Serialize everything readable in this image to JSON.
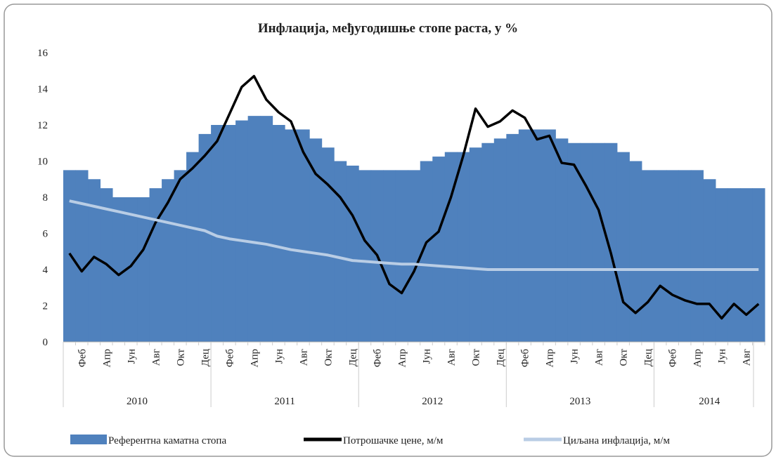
{
  "chart_data": {
    "type": "bar-line",
    "title": "Инфлација, међугодишње стопе раста, у %",
    "categories": [
      null,
      "Феб",
      null,
      "Апр",
      null,
      "Јун",
      null,
      "Авг",
      null,
      "Окт",
      null,
      "Дец",
      null,
      "Феб",
      null,
      "Апр",
      null,
      "Јун",
      null,
      "Авг",
      null,
      "Окт",
      null,
      "Дец",
      null,
      "Феб",
      null,
      "Апр",
      null,
      "Јун",
      null,
      "Авг",
      null,
      "Окт",
      null,
      "Дец",
      null,
      "Феб",
      null,
      "Апр",
      null,
      "Јун",
      null,
      "Авг",
      null,
      "Окт",
      null,
      "Дец",
      null,
      "Феб",
      null,
      "Апр",
      null,
      "Јун",
      null,
      "Авг",
      null
    ],
    "years": [
      "2010",
      null,
      null,
      null,
      null,
      null,
      null,
      null,
      null,
      null,
      null,
      null,
      "2011",
      null,
      null,
      null,
      null,
      null,
      null,
      null,
      null,
      null,
      null,
      null,
      "2012",
      null,
      null,
      null,
      null,
      null,
      null,
      null,
      null,
      null,
      null,
      null,
      "2013",
      null,
      null,
      null,
      null,
      null,
      null,
      null,
      null,
      null,
      null,
      null,
      "2014",
      null,
      null,
      null,
      null,
      null,
      null,
      null,
      null
    ],
    "ylim": [
      0,
      16
    ],
    "yticks": [
      0,
      2,
      4,
      6,
      8,
      10,
      12,
      14,
      16
    ],
    "series": [
      {
        "name": "Референтна каматна стопа",
        "kind": "bar",
        "color": "#4f81bd",
        "values": [
          9.5,
          9.5,
          9.0,
          8.5,
          8.0,
          8.0,
          8.0,
          8.5,
          9.0,
          9.5,
          10.5,
          11.5,
          12.0,
          12.0,
          12.25,
          12.5,
          12.5,
          12.0,
          11.75,
          11.75,
          11.25,
          10.75,
          10.0,
          9.75,
          9.5,
          9.5,
          9.5,
          9.5,
          9.5,
          10.0,
          10.25,
          10.5,
          10.5,
          10.75,
          11.0,
          11.25,
          11.5,
          11.75,
          11.75,
          11.75,
          11.25,
          11.0,
          11.0,
          11.0,
          11.0,
          10.5,
          10.0,
          9.5,
          9.5,
          9.5,
          9.5,
          9.5,
          9.0,
          8.5,
          8.5,
          8.5,
          8.5
        ]
      },
      {
        "name": "Потрошачке цене, м/м",
        "kind": "line",
        "color": "#000000",
        "values": [
          4.9,
          3.9,
          4.7,
          4.3,
          3.7,
          4.2,
          5.1,
          6.6,
          7.7,
          9.0,
          9.6,
          10.3,
          11.1,
          12.6,
          14.1,
          14.7,
          13.4,
          12.7,
          12.2,
          10.5,
          9.3,
          8.7,
          8.0,
          7.0,
          5.6,
          4.8,
          3.2,
          2.7,
          3.9,
          5.5,
          6.1,
          8.0,
          10.3,
          12.9,
          11.9,
          12.2,
          12.8,
          12.4,
          11.2,
          11.4,
          9.9,
          9.8,
          8.6,
          7.3,
          4.9,
          2.2,
          1.6,
          2.2,
          3.1,
          2.6,
          2.3,
          2.1,
          2.1,
          1.3,
          2.1,
          1.5,
          2.1
        ]
      },
      {
        "name": "Циљана инфлација, м/м",
        "kind": "line",
        "color": "#b9cde5",
        "values": [
          7.8,
          7.65,
          7.5,
          7.35,
          7.2,
          7.05,
          6.9,
          6.75,
          6.6,
          6.45,
          6.3,
          6.15,
          5.85,
          5.7,
          5.6,
          5.5,
          5.4,
          5.25,
          5.1,
          5.0,
          4.9,
          4.8,
          4.65,
          4.5,
          4.45,
          4.4,
          4.35,
          4.3,
          4.3,
          4.25,
          4.2,
          4.15,
          4.1,
          4.05,
          4.0,
          4.0,
          4.0,
          4.0,
          4.0,
          4.0,
          4.0,
          4.0,
          4.0,
          4.0,
          4.0,
          4.0,
          4.0,
          4.0,
          4.0,
          4.0,
          4.0,
          4.0,
          4.0,
          4.0,
          4.0,
          4.0,
          4.0
        ]
      }
    ]
  }
}
